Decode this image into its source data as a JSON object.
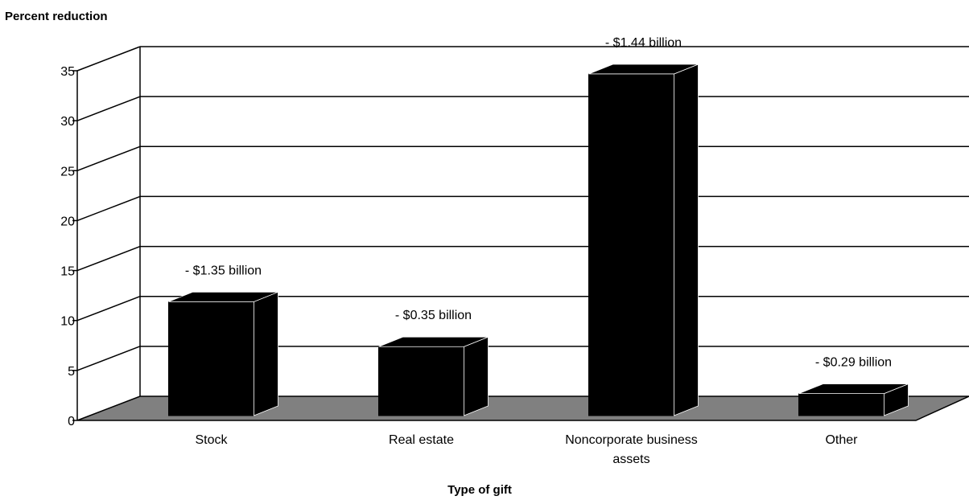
{
  "chart_data": {
    "type": "bar",
    "ylabel": "Percent reduction",
    "xlabel": "Type of gift",
    "ylim": [
      0,
      35
    ],
    "yticks": [
      "0",
      "5",
      "10",
      "15",
      "20",
      "25",
      "30",
      "35"
    ],
    "grid": true,
    "style": "3d",
    "categories": [
      "Stock",
      "Real estate",
      "Noncorporate business assets",
      "Other"
    ],
    "category_lines": [
      [
        "Stock"
      ],
      [
        "Real estate"
      ],
      [
        "Noncorporate business",
        "assets"
      ],
      [
        "Other"
      ]
    ],
    "values": [
      11.4,
      6.9,
      34.2,
      2.2
    ],
    "data_labels": [
      "- $1.35 billion",
      "- $0.35 billion",
      "- $1.44 billion",
      "- $0.29 billion"
    ],
    "colors": {
      "bar": "#000000",
      "floor": "#808080",
      "grid": "#000000"
    }
  }
}
